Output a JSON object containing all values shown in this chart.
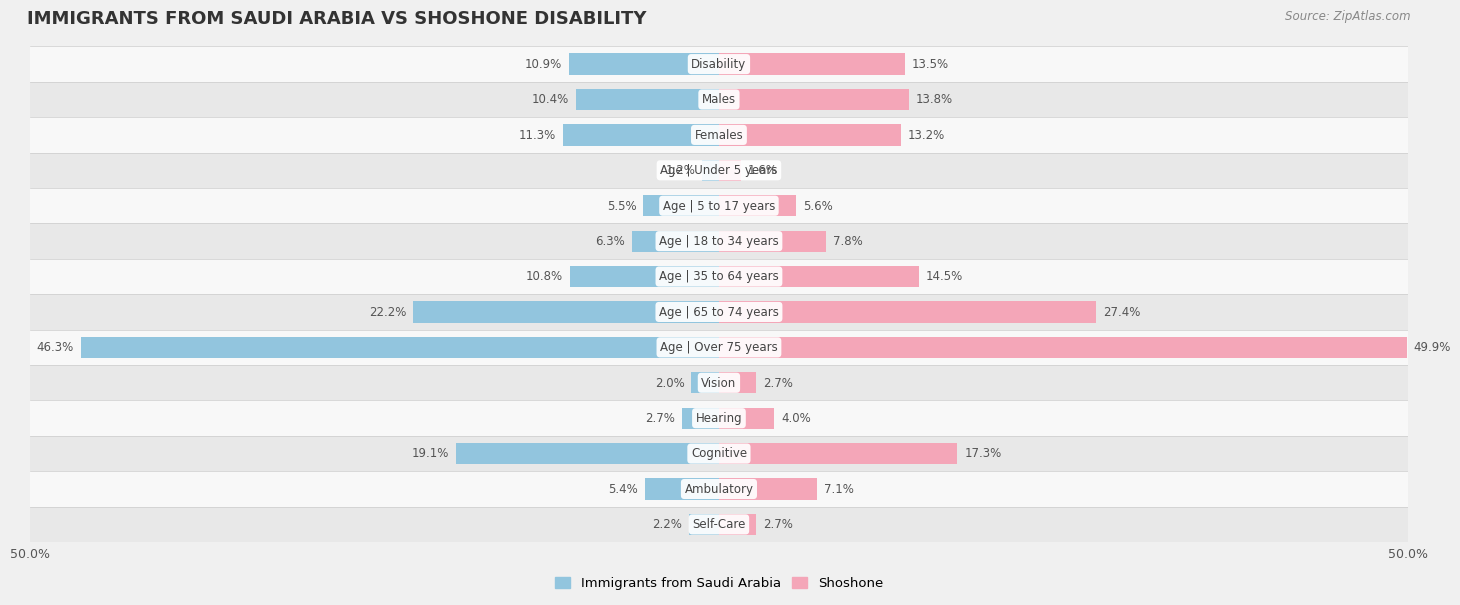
{
  "title": "IMMIGRANTS FROM SAUDI ARABIA VS SHOSHONE DISABILITY",
  "source": "Source: ZipAtlas.com",
  "categories": [
    "Disability",
    "Males",
    "Females",
    "Age | Under 5 years",
    "Age | 5 to 17 years",
    "Age | 18 to 34 years",
    "Age | 35 to 64 years",
    "Age | 65 to 74 years",
    "Age | Over 75 years",
    "Vision",
    "Hearing",
    "Cognitive",
    "Ambulatory",
    "Self-Care"
  ],
  "left_values": [
    10.9,
    10.4,
    11.3,
    1.2,
    5.5,
    6.3,
    10.8,
    22.2,
    46.3,
    2.0,
    2.7,
    19.1,
    5.4,
    2.2
  ],
  "right_values": [
    13.5,
    13.8,
    13.2,
    1.6,
    5.6,
    7.8,
    14.5,
    27.4,
    49.9,
    2.7,
    4.0,
    17.3,
    7.1,
    2.7
  ],
  "left_color": "#92C5DE",
  "right_color": "#F4A6B8",
  "axis_limit": 50.0,
  "legend_left": "Immigrants from Saudi Arabia",
  "legend_right": "Shoshone",
  "background_color": "#f0f0f0",
  "row_bg_even": "#f8f8f8",
  "row_bg_odd": "#e8e8e8",
  "title_fontsize": 13,
  "value_fontsize": 8.5,
  "label_fontsize": 8.5,
  "bar_height": 0.6
}
